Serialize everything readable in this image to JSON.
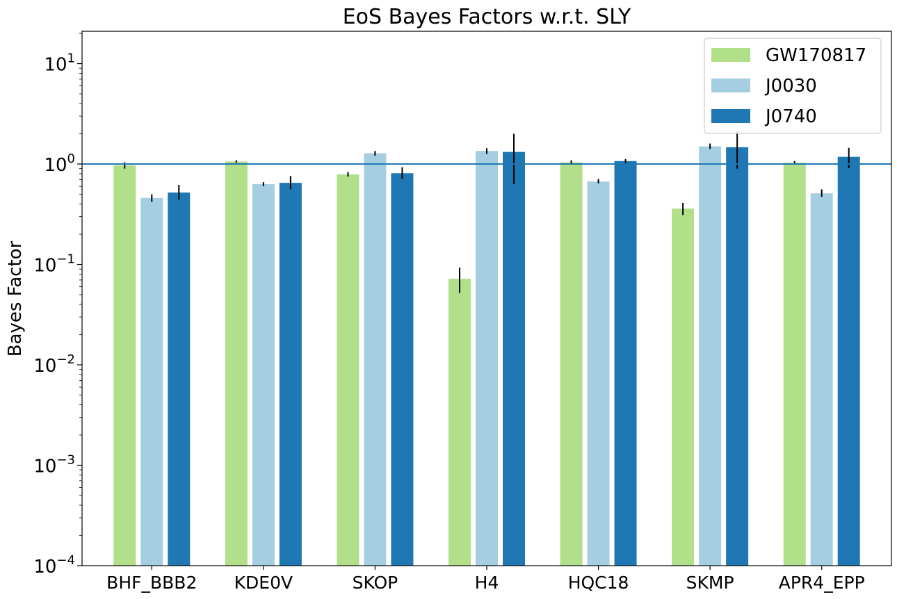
{
  "chart_data": {
    "type": "bar",
    "title": "EoS Bayes Factors w.r.t. SLY",
    "ylabel": "Bayes Factor",
    "xlabel": "",
    "yscale": "log",
    "ylim": [
      0.0001,
      21
    ],
    "yticks": [
      {
        "value": 0.0001,
        "base": "10",
        "exp": "−4"
      },
      {
        "value": 0.001,
        "base": "10",
        "exp": "−3"
      },
      {
        "value": 0.01,
        "base": "10",
        "exp": "−2"
      },
      {
        "value": 0.1,
        "base": "10",
        "exp": "−1"
      },
      {
        "value": 1,
        "base": "10",
        "exp": "0"
      },
      {
        "value": 10,
        "base": "10",
        "exp": "1"
      }
    ],
    "reference_line": {
      "value": 1,
      "color": "#1f77b4"
    },
    "legend_position": "top-right",
    "categories": [
      "BHF_BBB2",
      "KDE0V",
      "SKOP",
      "H4",
      "HQC18",
      "SKMP",
      "APR4_EPP"
    ],
    "series": [
      {
        "name": "GW170817",
        "color": "#b2df8a",
        "values": [
          0.97,
          1.06,
          0.79,
          0.072,
          1.04,
          0.36,
          1.03
        ],
        "err_low": [
          0.9,
          1.03,
          0.75,
          0.052,
          1.0,
          0.31,
          1.0
        ],
        "err_high": [
          1.04,
          1.09,
          0.83,
          0.093,
          1.09,
          0.41,
          1.07
        ]
      },
      {
        "name": "J0030",
        "color": "#a6cee3",
        "values": [
          0.46,
          0.63,
          1.28,
          1.35,
          0.67,
          1.5,
          0.51
        ],
        "err_low": [
          0.42,
          0.6,
          1.21,
          1.26,
          0.64,
          1.41,
          0.47
        ],
        "err_high": [
          0.5,
          0.66,
          1.35,
          1.44,
          0.71,
          1.6,
          0.56
        ]
      },
      {
        "name": "J0740",
        "color": "#1f78b4",
        "values": [
          0.52,
          0.65,
          0.81,
          1.32,
          1.07,
          1.47,
          1.18
        ],
        "err_low": [
          0.44,
          0.56,
          0.71,
          0.63,
          1.02,
          0.9,
          0.91
        ],
        "err_high": [
          0.62,
          0.76,
          0.93,
          2.0,
          1.12,
          2.15,
          1.45
        ]
      }
    ]
  }
}
